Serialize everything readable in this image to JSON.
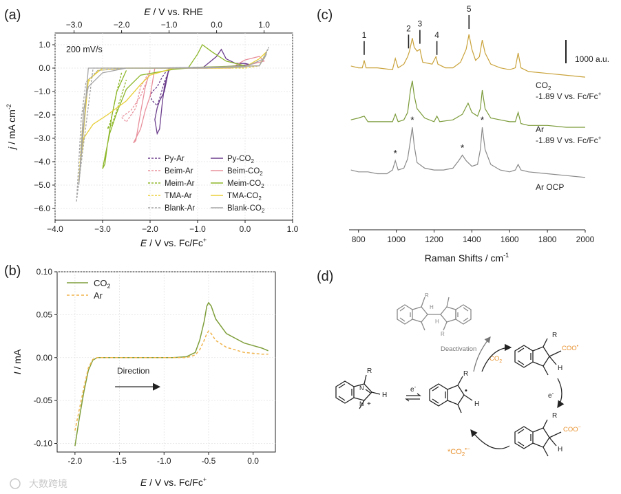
{
  "panel_labels": {
    "a": "(a)",
    "b": "(b)",
    "c": "(c)",
    "d": "(d)"
  },
  "colors": {
    "py": "#6b3d8c",
    "beim": "#e8909c",
    "meim": "#8db72a",
    "tma": "#e8cf38",
    "blank": "#a5a5a5",
    "co2_b": "#7e9e3a",
    "ar_b": "#f0b34a",
    "raman_co2": "#c9a23a",
    "raman_ar": "#7a9a38",
    "raman_ocp": "#8a8a8a",
    "orange": "#e8902c"
  },
  "watermark": "大数跨境",
  "chart_data": [
    {
      "id": "a",
      "type": "line",
      "title": "",
      "annotation": "200 mV/s",
      "xlabel": "E / V vs. Fc/Fc+",
      "xlabel_parts": {
        "main": "E",
        "rest": " / V vs. Fc/Fc",
        "sup": "+"
      },
      "x2label": "E / V vs. RHE",
      "x2label_parts": {
        "main": "E",
        "rest": " / V vs. RHE"
      },
      "ylabel": "j / mA cm-2",
      "ylabel_parts": {
        "main": "j",
        "rest": " / mA cm",
        "sup": "-2"
      },
      "xlim": [
        -4.0,
        1.0
      ],
      "ylim": [
        -6.5,
        1.5
      ],
      "xticks": [
        -4.0,
        -3.0,
        -2.0,
        -1.0,
        0.0,
        1.0
      ],
      "xtick_labels": [
        "−4.0",
        "−3.0",
        "−2.0",
        "−1.0",
        "0.0",
        "1.0"
      ],
      "yticks": [
        1.0,
        0.0,
        -1.0,
        -2.0,
        -3.0,
        -4.0,
        -5.0,
        -6.0
      ],
      "ytick_labels": [
        "1.0",
        "0.0",
        "−1.0",
        "−2.0",
        "−3.0",
        "−4.0",
        "−5.0",
        "−6.0"
      ],
      "x2ticks": [
        -3.0,
        -2.0,
        -1.0,
        0.0,
        1.0
      ],
      "x2tick_labels": [
        "−3.0",
        "−2.0",
        "−1.0",
        "0.0",
        "1.0"
      ],
      "x2_offset": 0.6,
      "legend": [
        {
          "label": "Py-Ar",
          "key": "py",
          "dash": true
        },
        {
          "label": "Py-CO2",
          "base": "Py-CO",
          "sub": "2",
          "key": "py",
          "dash": false
        },
        {
          "label": "Beim-Ar",
          "key": "beim",
          "dash": true
        },
        {
          "label": "Beim-CO2",
          "base": "Beim-CO",
          "sub": "2",
          "key": "beim",
          "dash": false
        },
        {
          "label": "Meim-Ar",
          "key": "meim",
          "dash": true
        },
        {
          "label": "Meim-CO2",
          "base": "Meim-CO",
          "sub": "2",
          "key": "meim",
          "dash": false
        },
        {
          "label": "TMA-Ar",
          "key": "tma",
          "dash": true
        },
        {
          "label": "TMA-CO2",
          "base": "TMA-CO",
          "sub": "2",
          "key": "tma",
          "dash": false
        },
        {
          "label": "Blank-Ar",
          "key": "blank",
          "dash": true
        },
        {
          "label": "Blank-CO2",
          "base": "Blank-CO",
          "sub": "2",
          "key": "blank",
          "dash": false
        }
      ],
      "series": [
        {
          "name": "Py-Ar",
          "key": "py",
          "dash": true,
          "x": [
            -1.6,
            -1.7,
            -1.8,
            -1.85,
            -1.95,
            -2.0,
            -1.95,
            -1.85,
            -1.75,
            -1.65,
            -1.6
          ],
          "y": [
            -0.1,
            -0.6,
            -1.3,
            -1.6,
            -1.4,
            -1.2,
            -1.0,
            -0.8,
            -0.4,
            -0.1,
            0.0
          ]
        },
        {
          "name": "Py-CO2",
          "key": "py",
          "dash": false,
          "x": [
            -1.6,
            -1.7,
            -1.75,
            -1.8,
            -1.85,
            -1.9,
            -1.85,
            -1.8,
            -1.7,
            -1.6,
            -0.9,
            -0.6,
            -0.5,
            -0.4,
            -0.2,
            0.0,
            0.1,
            -0.2,
            -0.5,
            -0.8,
            -1.2,
            -1.6
          ],
          "y": [
            0.0,
            -0.8,
            -1.6,
            -2.6,
            -2.8,
            -2.2,
            -1.7,
            -1.4,
            -1.0,
            0.0,
            0.0,
            0.5,
            0.8,
            0.4,
            0.2,
            0.2,
            0.15,
            0.1,
            0.05,
            0.0,
            0.0,
            0.0
          ]
        },
        {
          "name": "Beim-Ar",
          "key": "beim",
          "dash": true,
          "x": [
            -2.0,
            -2.2,
            -2.3,
            -2.5,
            -2.6,
            -2.4,
            -2.2,
            -2.0
          ],
          "y": [
            -0.1,
            -0.8,
            -1.7,
            -2.3,
            -2.1,
            -1.8,
            -1.2,
            -0.2
          ]
        },
        {
          "name": "Beim-CO2",
          "key": "beim",
          "dash": false,
          "x": [
            -2.0,
            -2.1,
            -2.2,
            -2.3,
            -2.35,
            -2.2,
            -2.1,
            -2.0,
            -1.9,
            -1.0,
            -0.3,
            0.0,
            0.3,
            0.4,
            0.0,
            -0.5,
            -1.0,
            -2.0
          ],
          "y": [
            -0.1,
            -0.8,
            -1.9,
            -3.1,
            -3.2,
            -2.6,
            -1.8,
            -1.2,
            0.0,
            0.0,
            0.0,
            0.35,
            0.5,
            0.3,
            0.1,
            0.05,
            0.0,
            0.0
          ]
        },
        {
          "name": "Meim-Ar",
          "key": "meim",
          "dash": true,
          "x": [
            -2.6,
            -2.7,
            -2.8,
            -2.85,
            -2.9,
            -2.8,
            -2.7,
            -2.5
          ],
          "y": [
            -0.2,
            -1.0,
            -2.0,
            -2.4,
            -2.6,
            -2.4,
            -1.8,
            -0.5
          ]
        },
        {
          "name": "Meim-CO2",
          "key": "meim",
          "dash": false,
          "x": [
            -2.5,
            -2.7,
            -2.8,
            -2.9,
            -2.95,
            -3.0,
            -2.95,
            -2.85,
            -2.7,
            -2.5,
            -2.2,
            -1.5,
            -1.2,
            -1.0,
            -0.9,
            -0.7,
            -0.4,
            0.0,
            -0.8,
            -1.5,
            -2.5
          ],
          "y": [
            -0.1,
            -1.0,
            -2.0,
            -3.3,
            -4.1,
            -4.3,
            -3.8,
            -2.8,
            -1.9,
            -0.9,
            -0.3,
            -0.05,
            0.0,
            0.6,
            1.0,
            0.7,
            0.3,
            0.1,
            0.05,
            0.0,
            0.0
          ]
        },
        {
          "name": "TMA-Ar",
          "key": "tma",
          "dash": true,
          "x": [
            -3.5,
            -3.45,
            -3.4,
            -3.3,
            -3.1,
            -2.5,
            -1.0,
            0.0,
            0.3
          ],
          "y": [
            -4.8,
            -3.2,
            -1.8,
            -0.6,
            -0.1,
            0.0,
            0.0,
            0.0,
            0.1
          ]
        },
        {
          "name": "TMA-CO2",
          "key": "tma",
          "dash": false,
          "x": [
            -3.5,
            -3.45,
            -3.4,
            -3.2,
            -2.9,
            -2.5,
            -2.2,
            -2.0,
            -1.5,
            -0.5,
            0.0,
            0.3,
            0.45,
            0.3,
            -0.5,
            -1.5,
            -2.5,
            -3.0,
            -3.3,
            -3.5
          ],
          "y": [
            -4.9,
            -3.8,
            -3.0,
            -2.4,
            -2.0,
            -1.4,
            -0.7,
            -0.3,
            0.0,
            0.0,
            0.05,
            0.4,
            0.7,
            0.1,
            0.05,
            0.0,
            0.0,
            0.0,
            -0.5,
            -4.9
          ]
        },
        {
          "name": "Blank-Ar",
          "key": "blank",
          "dash": true,
          "x": [
            -3.55,
            -3.5,
            -3.45,
            -3.35,
            -3.1,
            -2.5,
            -1.0,
            0.0,
            0.4,
            0.5,
            0.3,
            -0.5,
            -2.0,
            -3.2,
            -3.55
          ],
          "y": [
            -5.7,
            -4.0,
            -2.2,
            -0.6,
            -0.1,
            0.0,
            0.0,
            0.05,
            0.4,
            0.9,
            0.1,
            0.05,
            0.0,
            0.0,
            -5.7
          ]
        },
        {
          "name": "Blank-CO2",
          "key": "blank",
          "dash": false,
          "x": [
            -3.5,
            -3.45,
            -3.4,
            -3.3,
            -3.0,
            -2.5,
            -1.0,
            0.0,
            0.4,
            0.45,
            0.3,
            -0.5,
            -2.0,
            -3.3,
            -3.5
          ],
          "y": [
            -5.0,
            -3.5,
            -1.8,
            -0.8,
            -0.2,
            0.0,
            0.0,
            0.05,
            0.4,
            0.6,
            0.1,
            0.05,
            0.0,
            0.0,
            -5.0
          ]
        }
      ]
    },
    {
      "id": "b",
      "type": "line",
      "title": "",
      "xlabel": "E / V vs. Fc/Fc+",
      "xlabel_parts": {
        "main": "E",
        "rest": " / V vs. Fc/Fc",
        "sup": "+"
      },
      "ylabel": "I / mA",
      "ylabel_parts": {
        "main": "I",
        "rest": " / mA"
      },
      "xlim": [
        -2.2,
        0.25
      ],
      "ylim": [
        -0.11,
        0.1
      ],
      "xticks": [
        -2.0,
        -1.5,
        -1.0,
        -0.5,
        0.0
      ],
      "xtick_labels": [
        "-2.0",
        "-1.5",
        "-1.0",
        "-0.5",
        "0.0"
      ],
      "yticks": [
        0.1,
        0.05,
        0.0,
        -0.05,
        -0.1
      ],
      "ytick_labels": [
        "0.10",
        "0.05",
        "0.00",
        "-0.05",
        "-0.10"
      ],
      "annotation": "Direction",
      "arrow": {
        "x0": -1.55,
        "x1": -1.05,
        "y": -0.034
      },
      "legend": [
        {
          "label": "CO2",
          "base": "CO",
          "sub": "2",
          "key": "co2_b",
          "dash": false
        },
        {
          "label": "Ar",
          "key": "ar_b",
          "dash": true
        }
      ],
      "series": [
        {
          "name": "CO2",
          "key": "co2_b",
          "dash": false,
          "x": [
            -2.0,
            -1.95,
            -1.9,
            -1.85,
            -1.8,
            -1.75,
            -1.7,
            -1.5,
            -1.2,
            -0.9,
            -0.75,
            -0.65,
            -0.6,
            -0.55,
            -0.52,
            -0.5,
            -0.47,
            -0.42,
            -0.3,
            -0.1,
            0.0,
            0.1,
            0.17
          ],
          "y": [
            -0.103,
            -0.07,
            -0.04,
            -0.015,
            -0.003,
            0.0,
            0.0,
            0.0,
            0.0,
            0.0,
            0.001,
            0.006,
            0.02,
            0.042,
            0.06,
            0.064,
            0.06,
            0.045,
            0.028,
            0.017,
            0.014,
            0.011,
            0.008
          ]
        },
        {
          "name": "Ar",
          "key": "ar_b",
          "dash": true,
          "x": [
            -2.0,
            -1.95,
            -1.9,
            -1.85,
            -1.8,
            -1.75,
            -1.7,
            -1.5,
            -1.2,
            -0.9,
            -0.75,
            -0.65,
            -0.6,
            -0.55,
            -0.52,
            -0.5,
            -0.47,
            -0.42,
            -0.3,
            -0.1,
            0.0,
            0.1,
            0.17
          ],
          "y": [
            -0.085,
            -0.06,
            -0.035,
            -0.012,
            -0.002,
            0.0,
            0.0,
            0.0,
            0.0,
            0.0,
            0.0,
            0.003,
            0.009,
            0.02,
            0.028,
            0.031,
            0.028,
            0.02,
            0.012,
            0.006,
            0.005,
            0.004,
            0.004
          ]
        }
      ]
    },
    {
      "id": "c",
      "type": "line",
      "title": "",
      "xlabel": "Raman Shifts / cm-1",
      "xlabel_parts": {
        "main": "Raman Shifts / cm",
        "sup": "-1"
      },
      "xlim": [
        750,
        2000
      ],
      "xticks": [
        800,
        1000,
        1200,
        1400,
        1600,
        1800,
        2000
      ],
      "xtick_labels": [
        "800",
        "1000",
        "1200",
        "1400",
        "1600",
        "1800",
        "2000"
      ],
      "ylim": [
        0,
        100
      ],
      "scale_bar_label": "1000 a.u.",
      "peak_markers": [
        {
          "label": "1",
          "x": 830
        },
        {
          "label": "2",
          "x": 1065
        },
        {
          "label": "3",
          "x": 1125
        },
        {
          "label": "4",
          "x": 1215
        },
        {
          "label": "5",
          "x": 1385
        }
      ],
      "asterisks": [
        {
          "label": "*",
          "x": 995
        },
        {
          "label": "*",
          "x": 1085
        },
        {
          "label": "*",
          "x": 1350
        },
        {
          "label": "*",
          "x": 1455
        }
      ],
      "series": [
        {
          "name": "CO2 -1.89 V vs. Fc/Fc+",
          "label_line1": "CO2",
          "label_line1_base": "CO",
          "label_line1_sub": "2",
          "label_line2": "-1.89 V vs. Fc/Fc+",
          "label_line2_base": "-1.89 V vs. Fc/Fc",
          "label_line2_sup": "+",
          "key": "raman_co2",
          "x": [
            760,
            800,
            820,
            830,
            840,
            900,
            980,
            995,
            1010,
            1040,
            1060,
            1070,
            1085,
            1095,
            1110,
            1125,
            1140,
            1190,
            1210,
            1220,
            1260,
            1300,
            1340,
            1370,
            1385,
            1400,
            1420,
            1440,
            1455,
            1470,
            1500,
            1550,
            1600,
            1630,
            1645,
            1660,
            1700,
            1800,
            1900,
            2000
          ],
          "y": [
            83,
            82,
            82,
            86,
            82,
            82,
            81,
            87,
            82,
            84,
            88,
            91,
            98,
            93,
            91,
            92,
            85,
            84,
            88,
            84,
            82,
            82,
            85,
            92,
            100,
            92,
            86,
            88,
            97,
            90,
            84,
            82,
            81,
            82,
            90,
            82,
            80,
            79,
            78,
            77
          ]
        },
        {
          "name": "Ar -1.89 V vs. Fc/Fc+",
          "label_line1": "Ar",
          "label_line2": "-1.89 V vs. Fc/Fc+",
          "label_line2_base": "-1.89 V vs. Fc/Fc",
          "label_line2_sup": "+",
          "key": "raman_ar",
          "x": [
            760,
            800,
            830,
            850,
            900,
            980,
            995,
            1010,
            1040,
            1060,
            1075,
            1085,
            1095,
            1110,
            1150,
            1200,
            1215,
            1230,
            1300,
            1350,
            1380,
            1400,
            1430,
            1445,
            1455,
            1470,
            1500,
            1550,
            1600,
            1630,
            1645,
            1660,
            1700,
            1800,
            1900,
            2000
          ],
          "y": [
            54,
            55,
            56,
            53,
            53,
            53,
            57,
            53,
            54,
            58,
            70,
            75,
            67,
            60,
            55,
            53,
            56,
            53,
            54,
            57,
            63,
            58,
            56,
            60,
            70,
            60,
            55,
            54,
            53,
            53,
            58,
            52,
            51,
            51,
            50,
            50
          ]
        },
        {
          "name": "Ar OCP",
          "label_line1": "Ar OCP",
          "key": "raman_ocp",
          "x": [
            760,
            800,
            850,
            900,
            950,
            980,
            995,
            1010,
            1040,
            1060,
            1075,
            1085,
            1095,
            1110,
            1150,
            1200,
            1250,
            1300,
            1330,
            1350,
            1370,
            1400,
            1430,
            1445,
            1455,
            1470,
            1500,
            1550,
            1600,
            1630,
            1645,
            1660,
            1700,
            1800,
            1900,
            2000
          ],
          "y": [
            27,
            26,
            26,
            25,
            25,
            27,
            32,
            27,
            28,
            33,
            43,
            50,
            40,
            31,
            28,
            27,
            27,
            28,
            32,
            35,
            32,
            29,
            30,
            38,
            50,
            38,
            30,
            27,
            26,
            27,
            30,
            27,
            26,
            25,
            24,
            23
          ]
        }
      ]
    }
  ],
  "scheme": {
    "substituent_R": "R",
    "substituent_H": "H",
    "charge_plus": "+",
    "electron": "e",
    "electron_sup": "-",
    "radical_dot": "•",
    "deactivation": "Deactivation",
    "co2": "CO",
    "co2_sub": "2",
    "coo_dot": "COO",
    "coo_dot_sup": "•",
    "coo_minus": "COO",
    "coo_minus_sup": "−",
    "co2_radical": "*CO",
    "co2_radical_sub": "2",
    "co2_radical_sup": "•−"
  }
}
